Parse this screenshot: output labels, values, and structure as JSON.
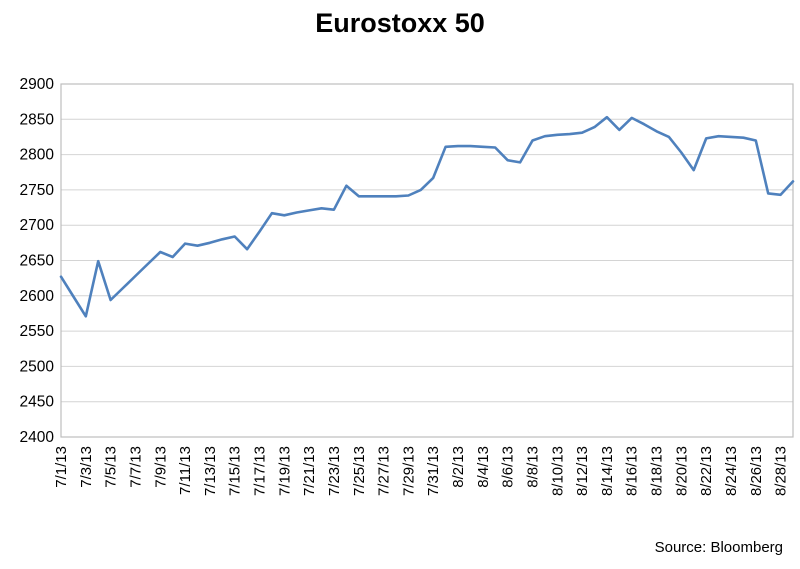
{
  "title": "Eurostoxx 50",
  "source_note": "Source: Bloomberg",
  "chart_data": {
    "type": "line",
    "title": "Eurostoxx 50",
    "series_name": "Eurostoxx 50",
    "line_color": "#4F81BD",
    "grid": true,
    "grid_color": "#D4D4D4",
    "border_color": "#BDBDBD",
    "axis_text_color": "#000000",
    "legend": "none",
    "ylim": [
      2400,
      2900
    ],
    "ytick_step": 50,
    "y_tick_labels": [
      "2400",
      "2450",
      "2500",
      "2550",
      "2600",
      "2650",
      "2700",
      "2750",
      "2800",
      "2850",
      "2900"
    ],
    "x_tick_every": 2,
    "x_tick_labels": [
      "7/1/13",
      "7/3/13",
      "7/5/13",
      "7/7/13",
      "7/9/13",
      "7/11/13",
      "7/13/13",
      "7/15/13",
      "7/17/13",
      "7/19/13",
      "7/21/13",
      "7/23/13",
      "7/25/13",
      "7/27/13",
      "7/29/13",
      "7/31/13",
      "8/2/13",
      "8/4/13",
      "8/6/13",
      "8/8/13",
      "8/10/13",
      "8/12/13",
      "8/14/13",
      "8/16/13",
      "8/18/13",
      "8/20/13",
      "8/22/13",
      "8/24/13",
      "8/26/13",
      "8/28/13"
    ],
    "x": [
      "7/1/13",
      "7/2/13",
      "7/3/13",
      "7/4/13",
      "7/5/13",
      "7/6/13",
      "7/7/13",
      "7/8/13",
      "7/9/13",
      "7/10/13",
      "7/11/13",
      "7/12/13",
      "7/13/13",
      "7/14/13",
      "7/15/13",
      "7/16/13",
      "7/17/13",
      "7/18/13",
      "7/19/13",
      "7/20/13",
      "7/21/13",
      "7/22/13",
      "7/23/13",
      "7/24/13",
      "7/25/13",
      "7/26/13",
      "7/27/13",
      "7/28/13",
      "7/29/13",
      "7/30/13",
      "7/31/13",
      "8/1/13",
      "8/2/13",
      "8/3/13",
      "8/4/13",
      "8/5/13",
      "8/6/13",
      "8/7/13",
      "8/8/13",
      "8/9/13",
      "8/10/13",
      "8/11/13",
      "8/12/13",
      "8/13/13",
      "8/14/13",
      "8/15/13",
      "8/16/13",
      "8/17/13",
      "8/18/13",
      "8/19/13",
      "8/20/13",
      "8/21/13",
      "8/22/13",
      "8/23/13",
      "8/24/13",
      "8/25/13",
      "8/26/13",
      "8/27/13",
      "8/28/13",
      "8/29/13"
    ],
    "values": [
      2627,
      2599,
      2571,
      2649,
      2594,
      2611,
      2628,
      2645,
      2662,
      2655,
      2674,
      2671,
      2675,
      2680,
      2684,
      2666,
      2691,
      2717,
      2714,
      2718,
      2721,
      2724,
      2722,
      2756,
      2741,
      2741,
      2741,
      2741,
      2742,
      2750,
      2767,
      2811,
      2812,
      2812,
      2811,
      2810,
      2792,
      2789,
      2820,
      2826,
      2828,
      2829,
      2831,
      2839,
      2853,
      2835,
      2852,
      2843,
      2833,
      2825,
      2803,
      2778,
      2823,
      2826,
      2825,
      2824,
      2820,
      2745,
      2743,
      2762
    ]
  }
}
